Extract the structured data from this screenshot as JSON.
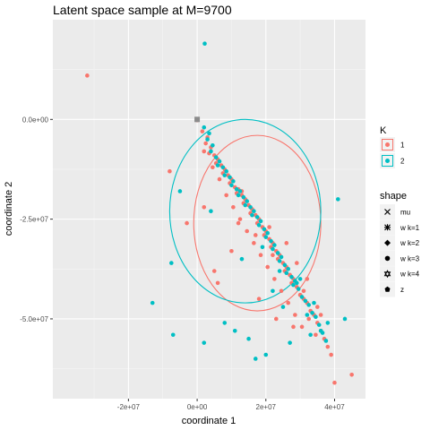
{
  "chart_data": {
    "type": "scatter",
    "title": "Latent space sample at M=9700",
    "xlabel": "coordinate 1",
    "ylabel": "coordinate 2",
    "xlim": [
      -42000000.0,
      49000000.0
    ],
    "ylim": [
      -70000000.0,
      25000000.0
    ],
    "x_ticks": [
      {
        "value": -20000000.0,
        "label": "-2e+07"
      },
      {
        "value": 0,
        "label": "0e+00"
      },
      {
        "value": 20000000.0,
        "label": "2e+07"
      },
      {
        "value": 40000000.0,
        "label": "4e+07"
      }
    ],
    "y_ticks": [
      {
        "value": 0,
        "label": "0.0e+00"
      },
      {
        "value": -25000000.0,
        "label": "-2.5e+07"
      },
      {
        "value": -50000000.0,
        "label": "-5.0e+07"
      }
    ],
    "grid": true,
    "colors": {
      "1": "#f8766d",
      "2": "#00bfc4"
    },
    "legend": {
      "position": "right",
      "color_title": "K",
      "color_entries": [
        {
          "key": "1",
          "label": "1"
        },
        {
          "key": "2",
          "label": "2"
        }
      ],
      "shape_title": "shape",
      "shape_entries": [
        {
          "shape": "cross",
          "label": "mu"
        },
        {
          "shape": "asterisk",
          "label": "w k=1"
        },
        {
          "shape": "diamond",
          "label": "w k=2"
        },
        {
          "shape": "circle",
          "label": "w k=3"
        },
        {
          "shape": "star",
          "label": "w k=4"
        },
        {
          "shape": "pentagon",
          "label": "z"
        }
      ]
    },
    "ellipses": [
      {
        "series": "1",
        "cx": 17500000.0,
        "cy": -26000000.0,
        "rx": 18500000.0,
        "ry": 22000000.0
      },
      {
        "series": "2",
        "cx": 14000000.0,
        "cy": -23000000.0,
        "rx": 22000000.0,
        "ry": 23000000.0
      }
    ],
    "series": [
      {
        "name": "1",
        "x": [
          -32000000.0,
          0,
          1500000.0,
          3000000.0,
          2500000.0,
          4000000.0,
          3500000.0,
          5000000.0,
          6000000.0,
          5500000.0,
          7000000.0,
          8000000.0,
          7500000.0,
          9000000.0,
          10000000.0,
          9500000.0,
          11000000.0,
          12000000.0,
          11500000.0,
          13000000.0,
          14000000.0,
          13500000.0,
          15000000.0,
          16000000.0,
          15500000.0,
          17000000.0,
          18000000.0,
          17500000.0,
          19000000.0,
          20000000.0,
          19500000.0,
          21000000.0,
          22000000.0,
          21500000.0,
          23000000.0,
          24000000.0,
          23500000.0,
          25000000.0,
          26000000.0,
          25500000.0,
          27000000.0,
          28000000.0,
          27500000.0,
          29000000.0,
          30000000.0,
          31000000.0,
          32000000.0,
          33000000.0,
          34000000.0,
          35000000.0,
          36000000.0,
          37000000.0,
          38000000.0,
          39000000.0,
          40000000.0,
          45000000.0,
          2000000.0,
          4500000.0,
          6500000.0,
          8500000.0,
          10500000.0,
          12500000.0,
          14500000.0,
          16500000.0,
          18500000.0,
          20500000.0,
          22500000.0,
          24500000.0,
          26500000.0,
          28500000.0,
          30500000.0,
          32500000.0,
          34500000.0,
          -8000000.0,
          -3000000.0,
          2000000.0,
          5000000.0,
          18000000.0,
          23000000.0,
          28000000.0,
          31000000.0,
          35000000.0,
          21000000.0,
          13000000.0,
          10000000.0,
          6000000.0,
          26000000.0,
          29000000.0,
          32000000.0,
          36000000.0,
          12000000.0,
          17000000.0,
          22000000.0,
          27000000.0,
          30000000.0
        ],
        "y": [
          11000000.0,
          -200000.0,
          -3000000.0,
          -4500000.0,
          -6000000.0,
          -7000000.0,
          -8500000.0,
          -9000000.0,
          -10000000.0,
          -11000000.0,
          -11500000.0,
          -12500000.0,
          -13500000.0,
          -14000000.0,
          -15000000.0,
          -16000000.0,
          -17000000.0,
          -17500000.0,
          -18500000.0,
          -19000000.0,
          -20000000.0,
          -21000000.0,
          -21500000.0,
          -22500000.0,
          -23500000.0,
          -24000000.0,
          -25000000.0,
          -26000000.0,
          -27000000.0,
          -28000000.0,
          -29000000.0,
          -30000000.0,
          -31000000.0,
          -32000000.0,
          -33000000.0,
          -34000000.0,
          -35000000.0,
          -36000000.0,
          -37000000.0,
          -38000000.0,
          -39000000.0,
          -40000000.0,
          -41000000.0,
          -42000000.0,
          -44000000.0,
          -45000000.0,
          -46000000.0,
          -48000000.0,
          -49000000.0,
          -51000000.0,
          -53000000.0,
          -55000000.0,
          -57000000.0,
          -59000000.0,
          -66000000.0,
          -64000000.0,
          -8000000.0,
          -12000000.0,
          -15000000.0,
          -19000000.0,
          -22000000.0,
          -25000000.0,
          -28000000.0,
          -31000000.0,
          -34000000.0,
          -37000000.0,
          -40000000.0,
          -43000000.0,
          -46000000.0,
          -49000000.0,
          -52000000.0,
          -50000000.0,
          -54000000.0,
          -13000000.0,
          -26000000.0,
          -22000000.0,
          -38000000.0,
          -45000000.0,
          -50000000.0,
          -52000000.0,
          -43000000.0,
          -47000000.0,
          -27000000.0,
          -18000000.0,
          -33000000.0,
          -41000000.0,
          -31000000.0,
          -36000000.0,
          -40000000.0,
          -49000000.0,
          -26000000.0,
          -29000000.0,
          -34000000.0,
          -39000000.0,
          -44000000.0
        ]
      },
      {
        "name": "2",
        "x": [
          2200000.0,
          0,
          2000000.0,
          3500000.0,
          3000000.0,
          4500000.0,
          4000000.0,
          5500000.0,
          6500000.0,
          6000000.0,
          7500000.0,
          8500000.0,
          8000000.0,
          9500000.0,
          10500000.0,
          10000000.0,
          11500000.0,
          12500000.0,
          12000000.0,
          13500000.0,
          14500000.0,
          14000000.0,
          15500000.0,
          16500000.0,
          16000000.0,
          17500000.0,
          18500000.0,
          18000000.0,
          19500000.0,
          20500000.0,
          20000000.0,
          21500000.0,
          22500000.0,
          22000000.0,
          23500000.0,
          24500000.0,
          24000000.0,
          25500000.0,
          26500000.0,
          26000000.0,
          27500000.0,
          28500000.0,
          28000000.0,
          29500000.0,
          30500000.0,
          31500000.0,
          32500000.0,
          33500000.0,
          34500000.0,
          35500000.0,
          36500000.0,
          37500000.0,
          41000000.0,
          43000000.0,
          -13000000.0,
          -7000000.0,
          -5000000.0,
          -7500000.0,
          2000000.0,
          8000000.0,
          15000000.0,
          20000000.0,
          25000000.0,
          30000000.0,
          22000000.0,
          33000000.0,
          19000000.0,
          11000000.0,
          17000000.0,
          27000000.0,
          32000000.0,
          38000000.0,
          24000000.0,
          29000000.0,
          34000000.0,
          4000000.0,
          13000000.0,
          36000000.0
        ],
        "y": [
          19000000.0,
          0,
          -2000000.0,
          -3500000.0,
          -5000000.0,
          -6500000.0,
          -8000000.0,
          -9500000.0,
          -10500000.0,
          -11500000.0,
          -12000000.0,
          -13000000.0,
          -14000000.0,
          -14500000.0,
          -15500000.0,
          -16500000.0,
          -17500000.0,
          -18000000.0,
          -19000000.0,
          -19500000.0,
          -20500000.0,
          -21500000.0,
          -22000000.0,
          -23000000.0,
          -24000000.0,
          -24500000.0,
          -25500000.0,
          -26500000.0,
          -27500000.0,
          -28500000.0,
          -29500000.0,
          -30500000.0,
          -31500000.0,
          -32500000.0,
          -33500000.0,
          -34500000.0,
          -35500000.0,
          -36500000.0,
          -37500000.0,
          -38500000.0,
          -39500000.0,
          -40500000.0,
          -41500000.0,
          -42500000.0,
          -44500000.0,
          -45500000.0,
          -46500000.0,
          -48500000.0,
          -49500000.0,
          -51500000.0,
          -53500000.0,
          -55500000.0,
          -20000000.0,
          -50000000.0,
          -46000000.0,
          -54000000.0,
          -18000000.0,
          -36000000.0,
          -56000000.0,
          -51000000.0,
          -55000000.0,
          -59000000.0,
          -47000000.0,
          -40000000.0,
          -43000000.0,
          -54000000.0,
          -32000000.0,
          -53000000.0,
          -60000000.0,
          -56000000.0,
          -49000000.0,
          -51000000.0,
          -38000000.0,
          -41000000.0,
          -46000000.0,
          -23000000.0,
          -35000000.0,
          -53000000.0
        ]
      }
    ]
  }
}
